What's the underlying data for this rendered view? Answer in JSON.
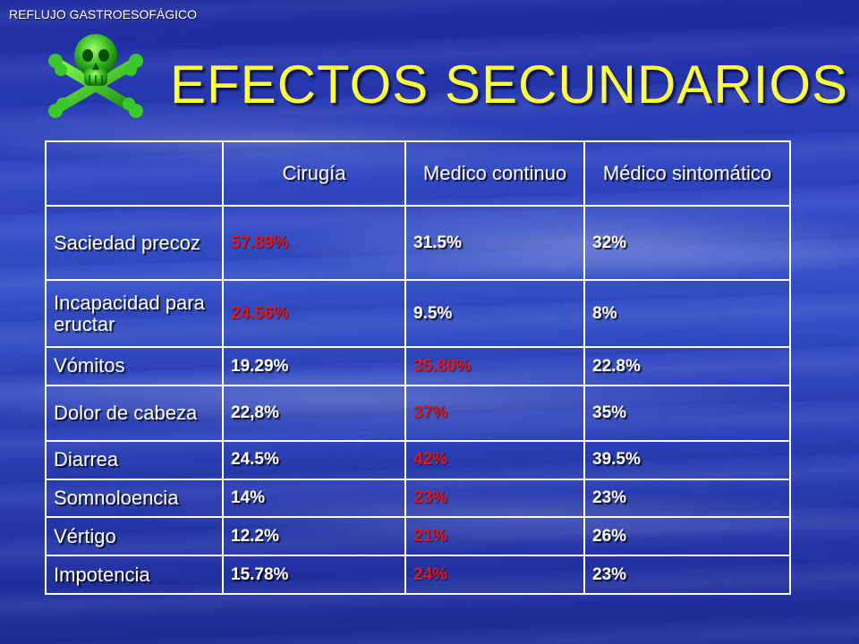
{
  "header": {
    "subject": "REFLUJO GASTROESOFÁGICO",
    "title": "EFECTOS SECUNDARIOS",
    "logo_icon": "skull-crossbones-icon",
    "title_color": "#ffff33",
    "highlight_color": "#e01818"
  },
  "table": {
    "columns": [
      "",
      "Cirugía",
      "Medico continuo",
      "Médico sintomático"
    ],
    "rows": [
      {
        "label": "Saciedad precoz",
        "values": [
          "57.89%",
          "31.5%",
          "32%"
        ],
        "highlight": [
          0
        ]
      },
      {
        "label": "Incapacidad para eructar",
        "values": [
          "24.56%",
          "9.5%",
          "8%"
        ],
        "highlight": [
          0
        ]
      },
      {
        "label": "Vómitos",
        "values": [
          "19.29%",
          "35.80%",
          "22.8%"
        ],
        "highlight": [
          1
        ]
      },
      {
        "label": "Dolor de cabeza",
        "values": [
          "22,8%",
          "37%",
          "35%"
        ],
        "highlight": [
          1
        ]
      },
      {
        "label": "Diarrea",
        "values": [
          "24.5%",
          "42%",
          "39.5%"
        ],
        "highlight": [
          1
        ]
      },
      {
        "label": "Somnoloencia",
        "values": [
          "14%",
          "23%",
          "23%"
        ],
        "highlight": [
          1
        ]
      },
      {
        "label": "Vértigo",
        "values": [
          "12.2%",
          "21%",
          "26%"
        ],
        "highlight": [
          1
        ]
      },
      {
        "label": "Impotencia",
        "values": [
          "15.78%",
          "24%",
          "23%"
        ],
        "highlight": [
          1
        ]
      }
    ]
  }
}
